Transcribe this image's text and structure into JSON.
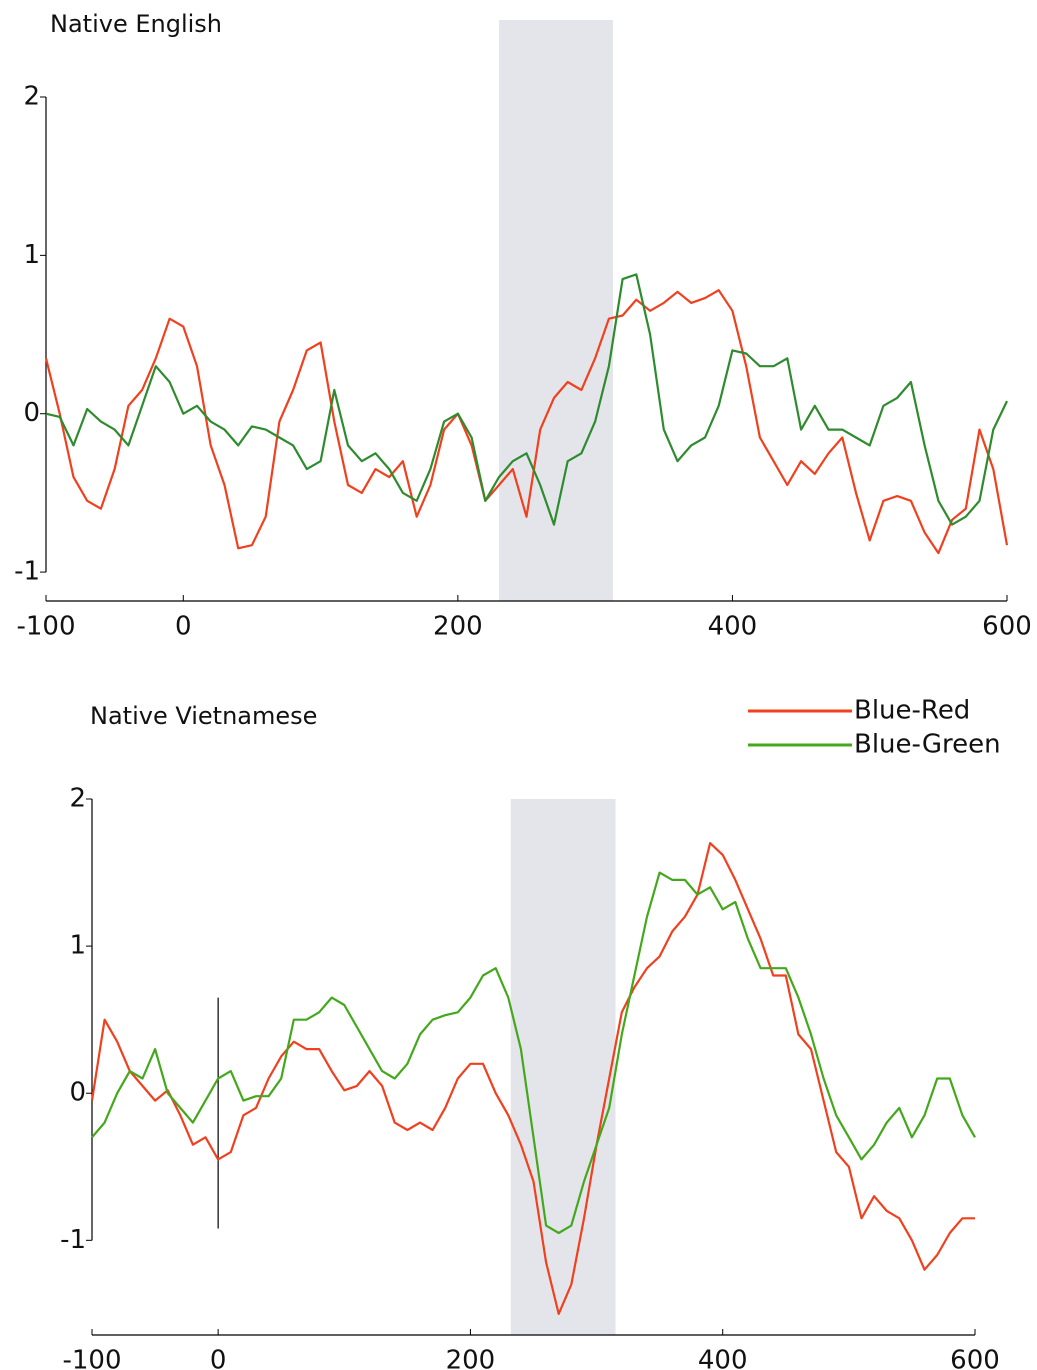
{
  "chart_data": [
    {
      "type": "line",
      "title": "Native English",
      "x": [
        -100,
        -90,
        -80,
        -70,
        -60,
        -50,
        -40,
        -30,
        -20,
        -10,
        0,
        10,
        20,
        30,
        40,
        50,
        60,
        70,
        80,
        90,
        100,
        110,
        120,
        130,
        140,
        150,
        160,
        170,
        180,
        190,
        200,
        210,
        220,
        230,
        240,
        250,
        260,
        270,
        280,
        290,
        300,
        310,
        320,
        330,
        340,
        350,
        360,
        370,
        380,
        390,
        400,
        410,
        420,
        430,
        440,
        450,
        460,
        470,
        480,
        490,
        500,
        510,
        520,
        530,
        540,
        550,
        560,
        570,
        580,
        590,
        600
      ],
      "series": [
        {
          "name": "Blue-Red",
          "color": "#f0401e",
          "values": [
            0.35,
            0.0,
            -0.4,
            -0.55,
            -0.6,
            -0.35,
            0.05,
            0.15,
            0.35,
            0.6,
            0.55,
            0.3,
            -0.2,
            -0.45,
            -0.85,
            -0.83,
            -0.65,
            -0.05,
            0.15,
            0.4,
            0.45,
            -0.05,
            -0.45,
            -0.5,
            -0.35,
            -0.4,
            -0.3,
            -0.65,
            -0.45,
            -0.1,
            0.0,
            -0.2,
            -0.55,
            -0.45,
            -0.35,
            -0.65,
            -0.1,
            0.1,
            0.2,
            0.15,
            0.35,
            0.6,
            0.62,
            0.72,
            0.65,
            0.7,
            0.77,
            0.7,
            0.73,
            0.78,
            0.65,
            0.3,
            -0.15,
            -0.3,
            -0.45,
            -0.3,
            -0.38,
            -0.25,
            -0.15,
            -0.5,
            -0.8,
            -0.55,
            -0.52,
            -0.55,
            -0.75,
            -0.88,
            -0.67,
            -0.6,
            -0.1,
            -0.35,
            -0.83
          ]
        },
        {
          "name": "Blue-Green",
          "color": "#2e8b2e",
          "values": [
            0.0,
            -0.02,
            -0.2,
            0.03,
            -0.05,
            -0.1,
            -0.2,
            0.05,
            0.3,
            0.2,
            0.0,
            0.05,
            -0.05,
            -0.1,
            -0.2,
            -0.08,
            -0.1,
            -0.15,
            -0.2,
            -0.35,
            -0.3,
            0.15,
            -0.2,
            -0.3,
            -0.25,
            -0.35,
            -0.5,
            -0.55,
            -0.35,
            -0.05,
            0.0,
            -0.15,
            -0.55,
            -0.4,
            -0.3,
            -0.25,
            -0.45,
            -0.7,
            -0.3,
            -0.25,
            -0.05,
            0.3,
            0.85,
            0.88,
            0.5,
            -0.1,
            -0.3,
            -0.2,
            -0.15,
            0.05,
            0.4,
            0.38,
            0.3,
            0.3,
            0.35,
            -0.1,
            0.05,
            -0.1,
            -0.1,
            -0.15,
            -0.2,
            0.05,
            0.1,
            0.2,
            -0.2,
            -0.55,
            -0.7,
            -0.65,
            -0.55,
            -0.1,
            0.08
          ]
        }
      ],
      "xlim": [
        -100,
        600
      ],
      "xticks": [
        -100,
        0,
        200,
        400,
        600
      ],
      "ylim": [
        -1.17,
        2
      ],
      "yticks": [
        -1,
        0,
        1,
        2
      ],
      "shade": [
        230,
        313
      ],
      "shade_color": "#e4e5ea"
    },
    {
      "type": "line",
      "title": "Native Vietnamese",
      "x": [
        -100,
        -90,
        -80,
        -70,
        -60,
        -50,
        -40,
        -30,
        -20,
        -10,
        0,
        10,
        20,
        30,
        40,
        50,
        60,
        70,
        80,
        90,
        100,
        110,
        120,
        130,
        140,
        150,
        160,
        170,
        180,
        190,
        200,
        210,
        220,
        230,
        240,
        250,
        260,
        270,
        280,
        290,
        300,
        310,
        320,
        330,
        340,
        350,
        360,
        370,
        380,
        390,
        400,
        410,
        420,
        430,
        440,
        450,
        460,
        470,
        480,
        490,
        500,
        510,
        520,
        530,
        540,
        550,
        560,
        570,
        580,
        590,
        600
      ],
      "series": [
        {
          "name": "Blue-Red",
          "color": "#f0401e",
          "values": [
            -0.05,
            0.5,
            0.35,
            0.15,
            0.05,
            -0.05,
            0.02,
            -0.15,
            -0.35,
            -0.3,
            -0.45,
            -0.4,
            -0.15,
            -0.1,
            0.1,
            0.25,
            0.35,
            0.3,
            0.3,
            0.15,
            0.02,
            0.05,
            0.15,
            0.05,
            -0.2,
            -0.25,
            -0.2,
            -0.25,
            -0.1,
            0.1,
            0.2,
            0.2,
            0.0,
            -0.15,
            -0.35,
            -0.6,
            -1.15,
            -1.5,
            -1.3,
            -0.85,
            -0.35,
            0.1,
            0.55,
            0.72,
            0.85,
            0.93,
            1.1,
            1.2,
            1.35,
            1.7,
            1.62,
            1.45,
            1.25,
            1.05,
            0.8,
            0.8,
            0.4,
            0.3,
            -0.05,
            -0.4,
            -0.5,
            -0.85,
            -0.7,
            -0.8,
            -0.85,
            -1.0,
            -1.2,
            -1.1,
            -0.95,
            -0.85,
            -0.85
          ]
        },
        {
          "name": "Blue-Green",
          "color": "#44a81c",
          "values": [
            -0.3,
            -0.2,
            0.0,
            0.15,
            0.1,
            0.3,
            0.0,
            -0.1,
            -0.2,
            -0.05,
            0.1,
            0.15,
            -0.05,
            -0.02,
            -0.02,
            0.1,
            0.5,
            0.5,
            0.55,
            0.65,
            0.6,
            0.45,
            0.3,
            0.15,
            0.1,
            0.2,
            0.4,
            0.5,
            0.53,
            0.55,
            0.65,
            0.8,
            0.85,
            0.65,
            0.3,
            -0.3,
            -0.9,
            -0.95,
            -0.9,
            -0.6,
            -0.35,
            -0.1,
            0.4,
            0.8,
            1.2,
            1.5,
            1.45,
            1.45,
            1.35,
            1.4,
            1.25,
            1.3,
            1.05,
            0.85,
            0.85,
            0.85,
            0.65,
            0.4,
            0.1,
            -0.15,
            -0.3,
            -0.45,
            -0.35,
            -0.2,
            -0.1,
            -0.3,
            -0.15,
            0.1,
            0.1,
            -0.15,
            -0.3
          ]
        }
      ],
      "xlim": [
        -100,
        600
      ],
      "xticks": [
        -100,
        0,
        200,
        400,
        600
      ],
      "ylim": [
        -1.63,
        2
      ],
      "yticks": [
        -1,
        0,
        1,
        2
      ],
      "shade": [
        232,
        315
      ],
      "shade_color": "#e4e5ea",
      "vline": {
        "x": 0,
        "y": [
          -0.92,
          0.65
        ]
      },
      "legend": "top-right"
    }
  ]
}
